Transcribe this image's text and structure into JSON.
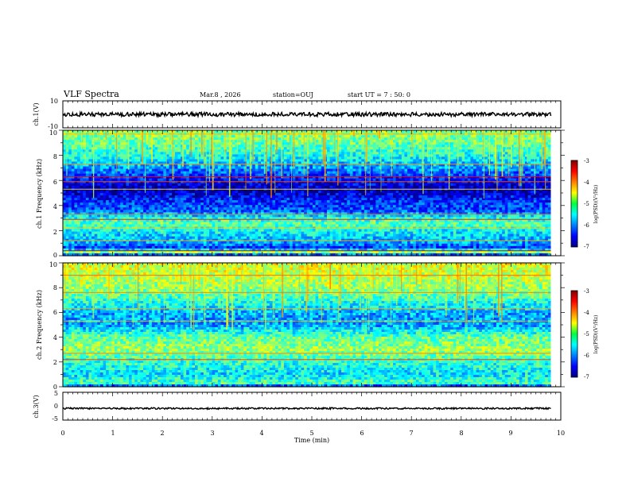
{
  "header": {
    "title": "VLF Spectra",
    "date": "Mar.8 , 2026",
    "station": "station=OUJ",
    "start": "start UT = 7 : 50: 0"
  },
  "chart_data": [
    {
      "id": "ch1-wave",
      "type": "line",
      "ylabel": "ch.1(V)",
      "ylim": [
        -10,
        10
      ],
      "yticks": [
        "10",
        "-10"
      ],
      "xlim": [
        0,
        10
      ],
      "signal": {
        "mean_v": 0,
        "amplitude_v": 1.5,
        "ends_at_min": 9.8
      }
    },
    {
      "id": "ch1-spectrogram",
      "type": "heatmap",
      "ylabel": "ch.1 Frequency (kHz)",
      "ylim": [
        0,
        10
      ],
      "yticks": [
        "0",
        "2",
        "4",
        "6",
        "8",
        "10"
      ],
      "xlim": [
        0,
        10
      ],
      "data_ends_at_min": 9.8,
      "colorbar": {
        "label": "log(PSD)(V²/Hz)",
        "range": [
          -7,
          -3
        ],
        "ticks": [
          "-3",
          "-4",
          "-5",
          "-6",
          "-7"
        ]
      },
      "level_profile": [
        {
          "f_khz": 0.0,
          "log_psd": -6.6
        },
        {
          "f_khz": 0.3,
          "log_psd": -4.8
        },
        {
          "f_khz": 0.6,
          "log_psd": -6.3
        },
        {
          "f_khz": 1.0,
          "log_psd": -5.9
        },
        {
          "f_khz": 2.0,
          "log_psd": -5.5
        },
        {
          "f_khz": 2.5,
          "log_psd": -5.1
        },
        {
          "f_khz": 3.0,
          "log_psd": -5.4
        },
        {
          "f_khz": 3.5,
          "log_psd": -6.1
        },
        {
          "f_khz": 4.5,
          "log_psd": -6.4
        },
        {
          "f_khz": 5.2,
          "log_psd": -6.8
        },
        {
          "f_khz": 6.0,
          "log_psd": -6.5
        },
        {
          "f_khz": 7.0,
          "log_psd": -5.9
        },
        {
          "f_khz": 8.0,
          "log_psd": -5.4
        },
        {
          "f_khz": 9.0,
          "log_psd": -5.1
        },
        {
          "f_khz": 10.0,
          "log_psd": -4.9
        }
      ],
      "lines_khz": [
        {
          "f": 0.4,
          "log_psd": -3.3
        },
        {
          "f": 1.2,
          "log_psd": -4.2
        },
        {
          "f": 2.2,
          "log_psd": -4.3
        },
        {
          "f": 2.9,
          "log_psd": -3.6
        },
        {
          "f": 3.3,
          "log_psd": -4.0
        },
        {
          "f": 5.3,
          "log_psd": -4.4
        },
        {
          "f": 5.9,
          "log_psd": -3.8
        },
        {
          "f": 6.3,
          "log_psd": -3.5
        },
        {
          "f": 7.3,
          "log_psd": -4.1
        },
        {
          "f": 9.7,
          "log_psd": -4.2
        }
      ]
    },
    {
      "id": "ch2-spectrogram",
      "type": "heatmap",
      "ylabel": "ch.2 Frequency (kHz)",
      "ylim": [
        0,
        10
      ],
      "yticks": [
        "0",
        "2",
        "4",
        "6",
        "8",
        "10"
      ],
      "xlim": [
        0,
        10
      ],
      "data_ends_at_min": 9.8,
      "colorbar": {
        "label": "log(PSD)(V²/Hz)",
        "range": [
          -7,
          -3
        ],
        "ticks": [
          "-3",
          "-4",
          "-5",
          "-6",
          "-7"
        ]
      },
      "level_profile": [
        {
          "f_khz": 0.0,
          "log_psd": -6.4
        },
        {
          "f_khz": 0.3,
          "log_psd": -5.2
        },
        {
          "f_khz": 1.0,
          "log_psd": -5.6
        },
        {
          "f_khz": 2.0,
          "log_psd": -5.3
        },
        {
          "f_khz": 3.0,
          "log_psd": -4.9
        },
        {
          "f_khz": 4.0,
          "log_psd": -5.1
        },
        {
          "f_khz": 5.0,
          "log_psd": -5.9
        },
        {
          "f_khz": 6.0,
          "log_psd": -5.8
        },
        {
          "f_khz": 7.0,
          "log_psd": -5.3
        },
        {
          "f_khz": 8.0,
          "log_psd": -4.9
        },
        {
          "f_khz": 9.0,
          "log_psd": -4.7
        },
        {
          "f_khz": 10.0,
          "log_psd": -4.6
        }
      ],
      "lines_khz": [
        {
          "f": 2.2,
          "log_psd": -3.7
        },
        {
          "f": 2.7,
          "log_psd": -4.0
        },
        {
          "f": 5.3,
          "log_psd": -4.3
        },
        {
          "f": 6.3,
          "log_psd": -4.2
        },
        {
          "f": 7.6,
          "log_psd": -4.0
        },
        {
          "f": 9.0,
          "log_psd": -3.9
        }
      ]
    },
    {
      "id": "ch3-wave",
      "type": "line",
      "ylabel": "ch.3(V)",
      "ylim": [
        -5,
        5
      ],
      "yticks": [
        "5",
        "0",
        "-5"
      ],
      "xlim": [
        0,
        10
      ],
      "xlabel": "Time (min)",
      "xticks": [
        "0",
        "1",
        "2",
        "3",
        "4",
        "5",
        "6",
        "7",
        "8",
        "9",
        "10"
      ],
      "signal": {
        "mean_v": -0.8,
        "amplitude_v": 0.3,
        "ends_at_min": 9.8
      }
    }
  ]
}
